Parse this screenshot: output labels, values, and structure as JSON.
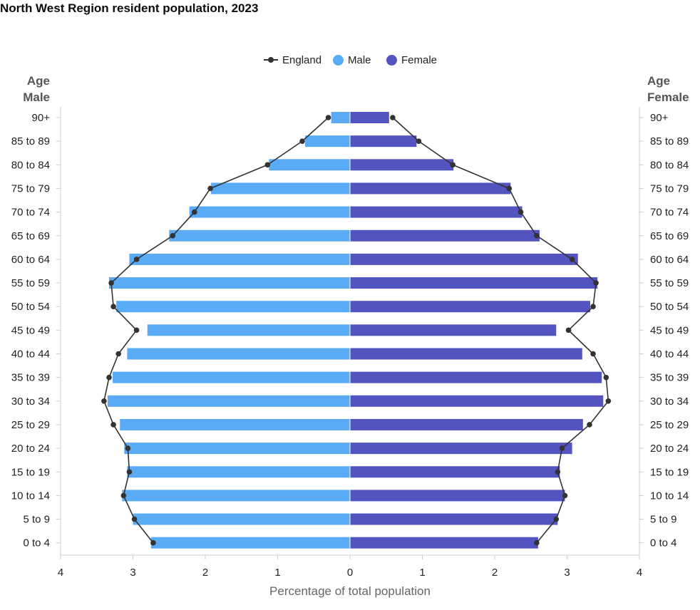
{
  "chart_data": {
    "type": "bar",
    "title": "North West Region resident population, 2023",
    "xlabel": "Percentage of total population",
    "left_axis_heading": [
      "Age",
      "Male"
    ],
    "right_axis_heading": [
      "Age",
      "Female"
    ],
    "xlim": [
      -4,
      4
    ],
    "x_ticks": [
      -4,
      -3,
      -2,
      -1,
      0,
      1,
      2,
      3,
      4
    ],
    "x_tick_labels": [
      "4",
      "3",
      "2",
      "1",
      "0",
      "1",
      "2",
      "3",
      "4"
    ],
    "categories": [
      "90+",
      "85 to 89",
      "80 to 84",
      "75 to 79",
      "70 to 74",
      "65 to 69",
      "60 to 64",
      "55 to 59",
      "50 to 54",
      "45 to 49",
      "40 to 44",
      "35 to 39",
      "30 to 34",
      "25 to 29",
      "20 to 24",
      "15 to 19",
      "10 to 14",
      "5 to 9",
      "0 to 4"
    ],
    "series": [
      {
        "name": "Male",
        "color": "#5aabf5",
        "values": [
          0.26,
          0.62,
          1.12,
          1.92,
          2.22,
          2.5,
          3.05,
          3.33,
          3.23,
          2.8,
          3.08,
          3.28,
          3.35,
          3.18,
          3.12,
          3.08,
          3.15,
          3.0,
          2.75
        ]
      },
      {
        "name": "Female",
        "color": "#5454c0",
        "values": [
          0.54,
          0.92,
          1.43,
          2.22,
          2.38,
          2.62,
          3.15,
          3.42,
          3.32,
          2.85,
          3.21,
          3.48,
          3.5,
          3.22,
          3.07,
          2.9,
          2.97,
          2.87,
          2.6
        ]
      },
      {
        "name": "England",
        "color": "#333333",
        "male_values": [
          0.3,
          0.66,
          1.14,
          1.93,
          2.15,
          2.45,
          2.95,
          3.3,
          3.27,
          2.95,
          3.2,
          3.33,
          3.4,
          3.27,
          3.07,
          3.05,
          3.13,
          2.98,
          2.72
        ],
        "female_values": [
          0.59,
          0.95,
          1.42,
          2.2,
          2.36,
          2.58,
          3.07,
          3.4,
          3.36,
          3.02,
          3.36,
          3.54,
          3.57,
          3.31,
          2.93,
          2.87,
          2.97,
          2.85,
          2.58
        ]
      }
    ],
    "legend_position": "top-center",
    "grid": false
  }
}
